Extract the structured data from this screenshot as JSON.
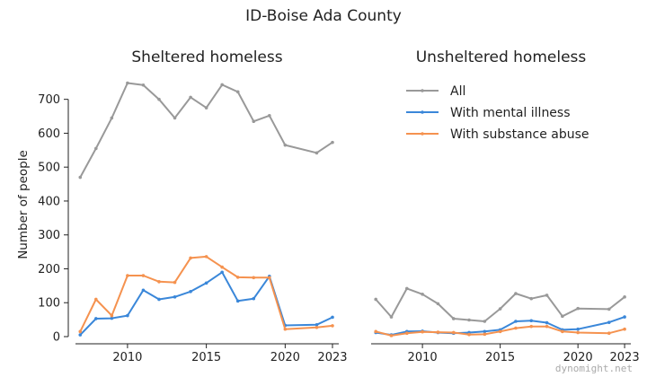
{
  "suptitle": "ID-Boise Ada County",
  "watermark": "dynomight.net",
  "chart_data": [
    {
      "type": "line",
      "title": "Sheltered homeless",
      "ylabel": "Number of people",
      "xlim": [
        2006.7,
        2023.4
      ],
      "ylim": [
        0,
        760
      ],
      "xticks": [
        "2010",
        "2015",
        "2020",
        "2023"
      ],
      "yticks": [
        "0",
        "100",
        "200",
        "300",
        "400",
        "500",
        "600",
        "700"
      ],
      "x": [
        2007,
        2008,
        2009,
        2010,
        2011,
        2012,
        2013,
        2014,
        2015,
        2016,
        2017,
        2018,
        2019,
        2020,
        2022,
        2023
      ],
      "series": [
        {
          "name": "All",
          "color": "#999999",
          "values": [
            470,
            555,
            645,
            748,
            742,
            700,
            645,
            706,
            675,
            743,
            722,
            635,
            652,
            565,
            542,
            573
          ]
        },
        {
          "name": "With mental illness",
          "color": "#3a87d9",
          "values": [
            5,
            53,
            54,
            62,
            137,
            110,
            117,
            133,
            158,
            190,
            105,
            112,
            178,
            33,
            35,
            57
          ]
        },
        {
          "name": "With substance abuse",
          "color": "#f5924f",
          "values": [
            15,
            110,
            62,
            180,
            180,
            162,
            160,
            232,
            236,
            205,
            175,
            174,
            174,
            22,
            27,
            32
          ]
        }
      ]
    },
    {
      "type": "line",
      "title": "Unsheltered homeless",
      "ylabel": "",
      "xlim": [
        2006.7,
        2023.4
      ],
      "ylim": [
        0,
        760
      ],
      "xticks": [
        "2010",
        "2015",
        "2020",
        "2023"
      ],
      "yticks": [],
      "x": [
        2007,
        2008,
        2009,
        2010,
        2011,
        2012,
        2013,
        2014,
        2015,
        2016,
        2017,
        2018,
        2019,
        2020,
        2022,
        2023
      ],
      "legend": "top-right",
      "series": [
        {
          "name": "All",
          "color": "#999999",
          "values": [
            110,
            58,
            142,
            125,
            97,
            53,
            49,
            45,
            82,
            127,
            112,
            122,
            60,
            83,
            81,
            117
          ]
        },
        {
          "name": "With mental illness",
          "color": "#3a87d9",
          "values": [
            12,
            5,
            15,
            16,
            12,
            10,
            12,
            15,
            20,
            45,
            47,
            41,
            20,
            22,
            42,
            58
          ]
        },
        {
          "name": "With substance abuse",
          "color": "#f5924f",
          "values": [
            15,
            3,
            10,
            14,
            13,
            12,
            6,
            7,
            15,
            25,
            30,
            30,
            15,
            12,
            10,
            22
          ]
        }
      ]
    }
  ]
}
